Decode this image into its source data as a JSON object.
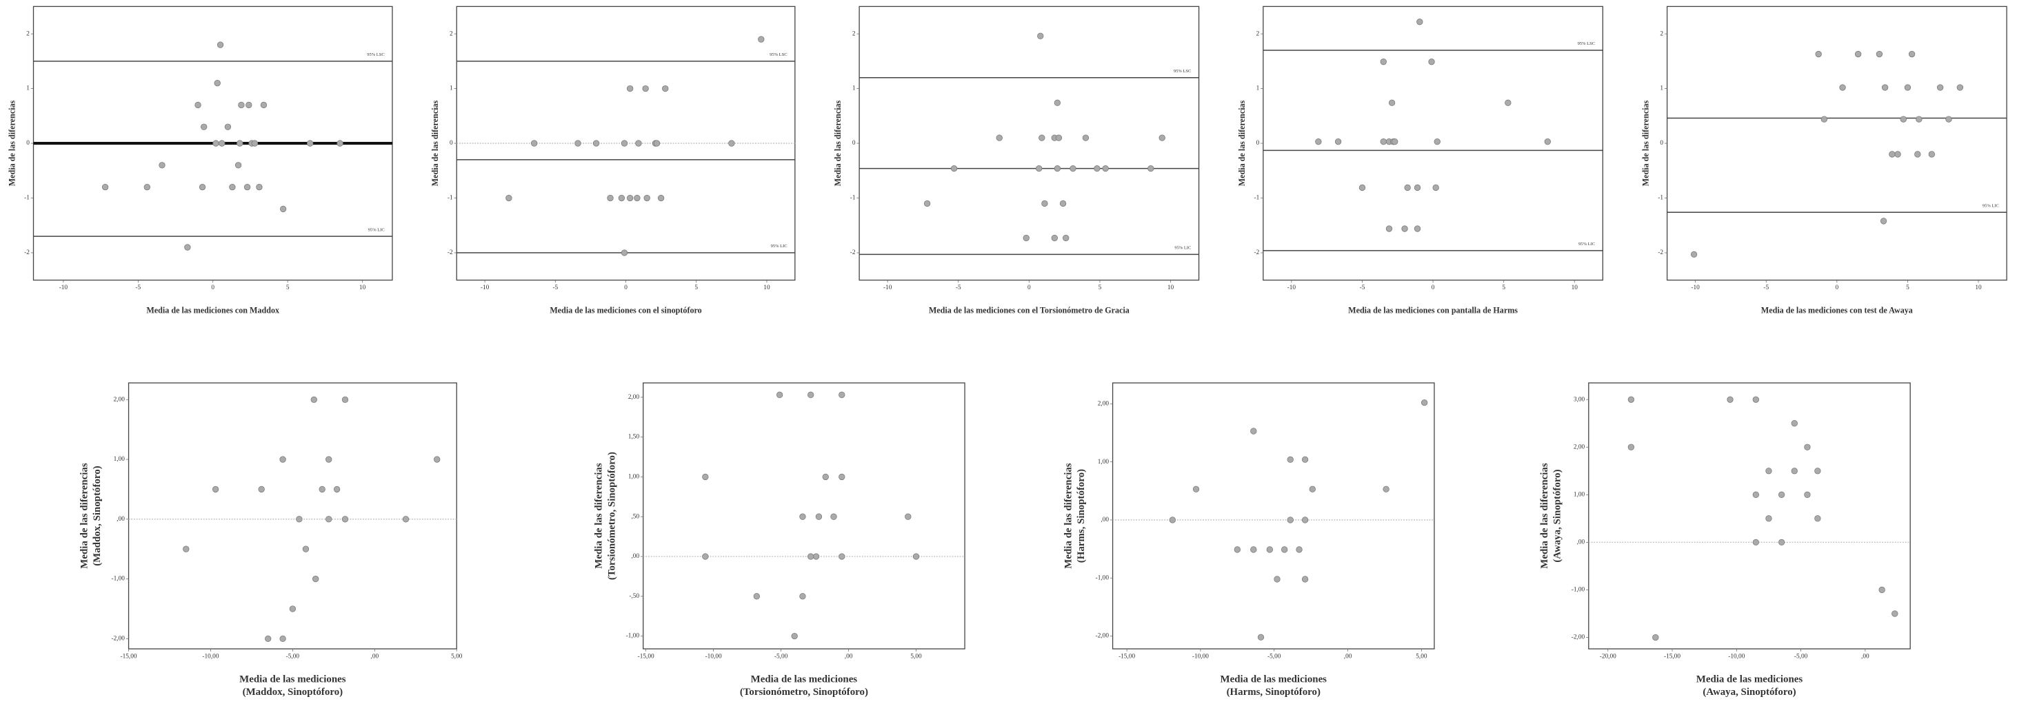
{
  "chart_data": [
    {
      "type": "scatter",
      "x_label": "Media de las mediciones con Maddox",
      "y_label": "Media de las diferencias",
      "xlim": [
        -12,
        12
      ],
      "ylim": [
        -2.5,
        2.5
      ],
      "xticks": [
        -10,
        -5,
        0,
        5,
        10
      ],
      "yticks": [
        -2,
        -1,
        0,
        1,
        2
      ],
      "hlines": [
        {
          "value": 1.5,
          "style": "solid",
          "label": "95% LSC"
        },
        {
          "value": 0,
          "style": "bold"
        },
        {
          "value": -1.7,
          "style": "solid",
          "label": "95% LIC"
        }
      ],
      "x": [
        0.5,
        0.3,
        -1.0,
        1.9,
        2.4,
        3.4,
        -0.6,
        1.0,
        0.2,
        0.6,
        1.8,
        2.6,
        2.8,
        6.5,
        8.5,
        -3.4,
        1.7,
        -7.2,
        -4.4,
        -0.7,
        1.3,
        2.3,
        3.1,
        4.7,
        -1.7
      ],
      "y": [
        1.8,
        1.1,
        0.7,
        0.7,
        0.7,
        0.7,
        0.3,
        0.3,
        0,
        0,
        0,
        0,
        0,
        0,
        0,
        -0.4,
        -0.4,
        -0.8,
        -0.8,
        -0.8,
        -0.8,
        -0.8,
        -0.8,
        -1.2,
        -1.9
      ]
    },
    {
      "type": "scatter",
      "x_label": "Media de las mediciones con el sinoptóforo",
      "y_label": "Media de las diferencias",
      "xlim": [
        -12,
        12
      ],
      "ylim": [
        -2.5,
        2.5
      ],
      "xticks": [
        -10,
        -5,
        0,
        5,
        10
      ],
      "yticks": [
        -2,
        -1,
        0,
        1,
        2
      ],
      "hlines": [
        {
          "value": 1.5,
          "style": "solid",
          "label": "95% LSC"
        },
        {
          "value": 0,
          "style": "dotted"
        },
        {
          "value": -0.3,
          "style": "solid"
        },
        {
          "value": -2.0,
          "style": "solid",
          "label": "95% LIC"
        }
      ],
      "x": [
        9.6,
        -6.5,
        -3.4,
        -2.1,
        -0.1,
        0.9,
        2.1,
        2.2,
        7.5,
        0.3,
        1.4,
        2.8,
        -8.3,
        -1.1,
        -0.3,
        0.3,
        0.8,
        1.5,
        2.5,
        -0.1
      ],
      "y": [
        1.9,
        0,
        0,
        0,
        0,
        0,
        0,
        0,
        0,
        1.0,
        1.0,
        1.0,
        -1.0,
        -1.0,
        -1.0,
        -1.0,
        -1.0,
        -1.0,
        -1.0,
        -2.0
      ]
    },
    {
      "type": "scatter",
      "x_label": "Media de las mediciones con el Torsionómetro de Gracia",
      "y_label": "Media de las diferencias",
      "xlim": [
        -12,
        12
      ],
      "ylim": [
        -2.5,
        2.5
      ],
      "xticks": [
        -10,
        -5,
        0,
        5,
        10
      ],
      "yticks": [
        -2,
        -1,
        0,
        1,
        2
      ],
      "hlines": [
        {
          "value": 1.2,
          "style": "solid",
          "label": "95% LSC"
        },
        {
          "value": -0.46,
          "style": "solid"
        },
        {
          "value": -2.03,
          "style": "solid",
          "label": "95% LIC"
        }
      ],
      "x": [
        0.8,
        2.0,
        -2.1,
        0.9,
        1.8,
        2.1,
        4.0,
        9.4,
        -5.3,
        0.7,
        2.0,
        3.1,
        4.8,
        5.4,
        8.6,
        -7.2,
        1.1,
        2.4,
        -0.2,
        1.8,
        2.6
      ],
      "y": [
        1.96,
        0.74,
        0.1,
        0.1,
        0.1,
        0.1,
        0.1,
        0.1,
        -0.46,
        -0.46,
        -0.46,
        -0.46,
        -0.46,
        -0.46,
        -0.46,
        -1.1,
        -1.1,
        -1.1,
        -1.73,
        -1.73,
        -1.73
      ]
    },
    {
      "type": "scatter",
      "x_label": "Media de las mediciones con pantalla de Harms",
      "y_label": "Media de las diferencias",
      "xlim": [
        -12,
        12
      ],
      "ylim": [
        -2.5,
        2.5
      ],
      "xticks": [
        -10,
        -5,
        0,
        5,
        10
      ],
      "yticks": [
        -2,
        -1,
        0,
        1,
        2
      ],
      "hlines": [
        {
          "value": 1.7,
          "style": "solid",
          "label": "95% LSC"
        },
        {
          "value": -0.13,
          "style": "solid"
        },
        {
          "value": -1.96,
          "style": "solid",
          "label": "95% LIC"
        }
      ],
      "x": [
        -0.94,
        -3.5,
        -0.1,
        -2.9,
        5.3,
        -8.1,
        -6.7,
        -3.5,
        -3.1,
        -2.8,
        -2.7,
        0.3,
        8.1,
        -5.0,
        -1.8,
        -1.1,
        0.2,
        -3.1,
        -2.0,
        -1.1
      ],
      "y": [
        2.22,
        1.49,
        1.49,
        0.74,
        0.74,
        0.03,
        0.03,
        0.03,
        0.03,
        0.03,
        0.03,
        0.03,
        0.03,
        -0.81,
        -0.81,
        -0.81,
        -0.81,
        -1.56,
        -1.56,
        -1.56
      ]
    },
    {
      "type": "scatter",
      "x_label": "Media de las mediciones con test de Awaya",
      "y_label": "Media de las diferencias",
      "xlim": [
        -12,
        12
      ],
      "ylim": [
        -2.5,
        2.5
      ],
      "xticks": [
        -10,
        -5,
        0,
        5,
        10
      ],
      "yticks": [
        -2,
        -1,
        0,
        1,
        2
      ],
      "hlines": [
        {
          "value": 0.46,
          "style": "solid"
        },
        {
          "value": -1.26,
          "style": "solid",
          "label": "95% LIC"
        }
      ],
      "x": [
        -1.3,
        1.5,
        3.0,
        5.3,
        0.4,
        3.4,
        5.0,
        7.3,
        8.7,
        -0.9,
        4.7,
        5.8,
        7.9,
        3.9,
        4.3,
        5.7,
        6.7,
        3.3,
        -10.1
      ],
      "y": [
        1.63,
        1.63,
        1.63,
        1.63,
        1.02,
        1.02,
        1.02,
        1.02,
        1.02,
        0.44,
        0.44,
        0.44,
        0.44,
        -0.2,
        -0.2,
        -0.2,
        -0.2,
        -1.42,
        -2.03
      ]
    },
    {
      "type": "scatter",
      "x_label": [
        "Media de las mediciones",
        "(Maddox, Sinoptóforo)"
      ],
      "y_label": [
        "Media de las diferencias",
        "(Maddox, Sinoptóforo)"
      ],
      "xlim": [
        -15,
        5
      ],
      "ylim": [
        -2.17,
        2.28
      ],
      "xticks": [
        {
          "value": -15,
          "label": "-15,00"
        },
        {
          "value": -10,
          "label": "-10,00"
        },
        {
          "value": -5,
          "label": "-5,00"
        },
        {
          "value": 0,
          "label": ",00"
        },
        {
          "value": 5,
          "label": "5,00"
        }
      ],
      "yticks": [
        {
          "value": -2,
          "label": "-2,00"
        },
        {
          "value": -1,
          "label": "-1,00"
        },
        {
          "value": 0,
          "label": ",00"
        },
        {
          "value": 1,
          "label": "1,00"
        },
        {
          "value": 2,
          "label": "2,00"
        }
      ],
      "hlines": [
        {
          "value": 0,
          "style": "dotted"
        }
      ],
      "x": [
        -3.7,
        -1.8,
        -5.6,
        -2.8,
        3.8,
        -9.7,
        -6.9,
        -3.2,
        -2.3,
        -4.6,
        -2.8,
        -1.8,
        1.9,
        -11.5,
        -4.2,
        -3.6,
        -5.0,
        -6.5,
        -5.6
      ],
      "y": [
        2.0,
        2.0,
        1.0,
        1.0,
        1.0,
        0.5,
        0.5,
        0.5,
        0.5,
        0,
        0,
        0,
        0,
        -0.5,
        -0.5,
        -1.0,
        -1.5,
        -2.0,
        -2.0
      ]
    },
    {
      "type": "scatter",
      "x_label": [
        "Media de las mediciones",
        "(Torsionómetro, Sinoptóforo)"
      ],
      "y_label": [
        "Media de las diferencias",
        "(Torsionómetro, Sinoptóforo)"
      ],
      "xlim": [
        -15.2,
        8.6
      ],
      "ylim": [
        -1.16,
        2.18
      ],
      "xticks": [
        {
          "value": -15,
          "label": "-15,00"
        },
        {
          "value": -10,
          "label": "-10,00"
        },
        {
          "value": -5,
          "label": "-5,00"
        },
        {
          "value": 0,
          "label": ",00"
        },
        {
          "value": 5,
          "label": "5,00"
        }
      ],
      "yticks": [
        {
          "value": -1,
          "label": "-1,00"
        },
        {
          "value": -0.5,
          "label": "-,50"
        },
        {
          "value": 0,
          "label": ",00"
        },
        {
          "value": 0.5,
          "label": ",50"
        },
        {
          "value": 1,
          "label": "1,00"
        },
        {
          "value": 1.5,
          "label": "1,50"
        },
        {
          "value": 2,
          "label": "2,00"
        }
      ],
      "hlines": [
        {
          "value": 0,
          "style": "dotted"
        }
      ],
      "x": [
        -5.1,
        -2.8,
        -0.5,
        -10.6,
        -1.7,
        -0.5,
        -3.4,
        -2.2,
        -1.1,
        4.4,
        -10.6,
        -2.8,
        -2.4,
        -0.5,
        5.0,
        -6.8,
        -3.4,
        -4.0
      ],
      "y": [
        2.03,
        2.03,
        2.03,
        1.0,
        1.0,
        1.0,
        0.5,
        0.5,
        0.5,
        0.5,
        0,
        0,
        0,
        0,
        0,
        -0.5,
        -0.5,
        -1.0
      ]
    },
    {
      "type": "scatter",
      "x_label": [
        "Media de las mediciones",
        "(Harms, Sinoptóforo)"
      ],
      "y_label": [
        "Media de las diferencias",
        "(Harms, Sinoptóforo)"
      ],
      "xlim": [
        -15.96,
        5.87
      ],
      "ylim": [
        -2.22,
        2.36
      ],
      "xticks": [
        {
          "value": -15,
          "label": "-15,00"
        },
        {
          "value": -10,
          "label": "-10,00"
        },
        {
          "value": -5,
          "label": "-5,00"
        },
        {
          "value": 0,
          "label": ",00"
        },
        {
          "value": 5,
          "label": "5,00"
        }
      ],
      "yticks": [
        {
          "value": -2,
          "label": "-2,00"
        },
        {
          "value": -1,
          "label": "-1,00"
        },
        {
          "value": 0,
          "label": ",00"
        },
        {
          "value": 1,
          "label": "1,00"
        },
        {
          "value": 2,
          "label": "2,00"
        }
      ],
      "hlines": [
        {
          "value": 0,
          "style": "dotted"
        }
      ],
      "x": [
        5.2,
        -6.4,
        -3.9,
        -2.9,
        -10.3,
        -2.4,
        2.6,
        -11.9,
        -3.9,
        -2.9,
        -7.5,
        -6.4,
        -5.3,
        -4.3,
        -3.3,
        -4.8,
        -2.9,
        -5.9
      ],
      "y": [
        2.02,
        1.53,
        1.04,
        1.04,
        0.53,
        0.53,
        0.53,
        0,
        0,
        0,
        -0.51,
        -0.51,
        -0.51,
        -0.51,
        -0.51,
        -1.02,
        -1.02,
        -2.02
      ]
    },
    {
      "type": "scatter",
      "x_label": [
        "Media de las mediciones",
        "(Awaya, Sinoptóforo)"
      ],
      "y_label": [
        "Media de las diferencias",
        "(Awaya, Sinoptóforo)"
      ],
      "xlim": [
        -21.5,
        3.5
      ],
      "ylim": [
        -2.24,
        3.35
      ],
      "xticks": [
        {
          "value": -20,
          "label": "-20,00"
        },
        {
          "value": -15,
          "label": "-15,00"
        },
        {
          "value": -10,
          "label": "-10,00"
        },
        {
          "value": -5,
          "label": "-5,00"
        },
        {
          "value": 0,
          "label": ",00"
        }
      ],
      "yticks": [
        {
          "value": -2,
          "label": "-2,00"
        },
        {
          "value": -1,
          "label": "-1,00"
        },
        {
          "value": 0,
          "label": ",00"
        },
        {
          "value": 1,
          "label": "1,00"
        },
        {
          "value": 2,
          "label": "2,00"
        },
        {
          "value": 3,
          "label": "3,00"
        }
      ],
      "hlines": [
        {
          "value": 0,
          "style": "dotted"
        }
      ],
      "x": [
        -18.2,
        -10.5,
        -8.5,
        -18.2,
        -5.5,
        -4.5,
        -7.5,
        -5.5,
        -3.7,
        -8.5,
        -6.5,
        -4.5,
        -7.5,
        -3.7,
        -8.5,
        -6.5,
        1.3,
        2.3,
        -16.3
      ],
      "y": [
        3.0,
        3.0,
        3.0,
        2.0,
        2.5,
        2.0,
        1.5,
        1.5,
        1.5,
        1.0,
        1.0,
        1.0,
        0.5,
        0.5,
        0,
        0,
        -1.0,
        -1.5,
        -2.0
      ]
    }
  ]
}
